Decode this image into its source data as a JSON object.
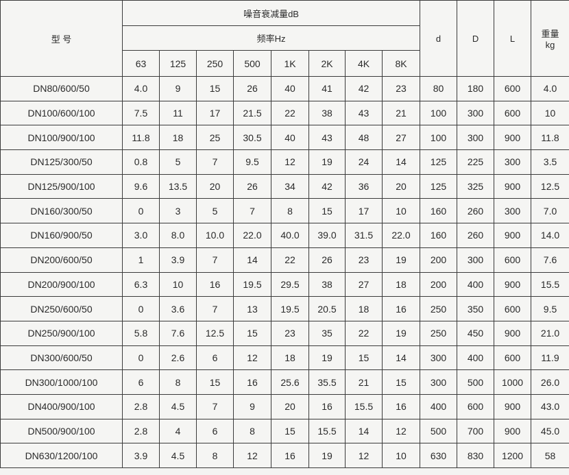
{
  "header": {
    "model": "型 号",
    "attenuation": "噪音衰减量dB",
    "frequency": "频率Hz",
    "frequencies": [
      "63",
      "125",
      "250",
      "500",
      "1K",
      "2K",
      "4K",
      "8K"
    ],
    "d": "d",
    "D": "D",
    "L": "L",
    "weight": "重量",
    "weight_unit": "kg"
  },
  "rows": [
    [
      "DN80/600/50",
      "4.0",
      "9",
      "15",
      "26",
      "40",
      "41",
      "42",
      "23",
      "80",
      "180",
      "600",
      "4.0"
    ],
    [
      "DN100/600/100",
      "7.5",
      "11",
      "17",
      "21.5",
      "22",
      "38",
      "43",
      "21",
      "100",
      "300",
      "600",
      "10"
    ],
    [
      "DN100/900/100",
      "11.8",
      "18",
      "25",
      "30.5",
      "40",
      "43",
      "48",
      "27",
      "100",
      "300",
      "900",
      "11.8"
    ],
    [
      "DN125/300/50",
      "0.8",
      "5",
      "7",
      "9.5",
      "12",
      "19",
      "24",
      "14",
      "125",
      "225",
      "300",
      "3.5"
    ],
    [
      "DN125/900/100",
      "9.6",
      "13.5",
      "20",
      "26",
      "34",
      "42",
      "36",
      "20",
      "125",
      "325",
      "900",
      "12.5"
    ],
    [
      "DN160/300/50",
      "0",
      "3",
      "5",
      "7",
      "8",
      "15",
      "17",
      "10",
      "160",
      "260",
      "300",
      "7.0"
    ],
    [
      "DN160/900/50",
      "3.0",
      "8.0",
      "10.0",
      "22.0",
      "40.0",
      "39.0",
      "31.5",
      "22.0",
      "160",
      "260",
      "900",
      "14.0"
    ],
    [
      "DN200/600/50",
      "1",
      "3.9",
      "7",
      "14",
      "22",
      "26",
      "23",
      "19",
      "200",
      "300",
      "600",
      "7.6"
    ],
    [
      "DN200/900/100",
      "6.3",
      "10",
      "16",
      "19.5",
      "29.5",
      "38",
      "27",
      "18",
      "200",
      "400",
      "900",
      "15.5"
    ],
    [
      "DN250/600/50",
      "0",
      "3.6",
      "7",
      "13",
      "19.5",
      "20.5",
      "18",
      "16",
      "250",
      "350",
      "600",
      "9.5"
    ],
    [
      "DN250/900/100",
      "5.8",
      "7.6",
      "12.5",
      "15",
      "23",
      "35",
      "22",
      "19",
      "250",
      "450",
      "900",
      "21.0"
    ],
    [
      "DN300/600/50",
      "0",
      "2.6",
      "6",
      "12",
      "18",
      "19",
      "15",
      "14",
      "300",
      "400",
      "600",
      "11.9"
    ],
    [
      "DN300/1000/100",
      "6",
      "8",
      "15",
      "16",
      "25.6",
      "35.5",
      "21",
      "15",
      "300",
      "500",
      "1000",
      "26.0"
    ],
    [
      "DN400/900/100",
      "2.8",
      "4.5",
      "7",
      "9",
      "20",
      "16",
      "15.5",
      "16",
      "400",
      "600",
      "900",
      "43.0"
    ],
    [
      "DN500/900/100",
      "2.8",
      "4",
      "6",
      "8",
      "15",
      "15.5",
      "14",
      "12",
      "500",
      "700",
      "900",
      "45.0"
    ],
    [
      "DN630/1200/100",
      "3.9",
      "4.5",
      "8",
      "12",
      "16",
      "19",
      "12",
      "10",
      "630",
      "830",
      "1200",
      "58"
    ]
  ]
}
